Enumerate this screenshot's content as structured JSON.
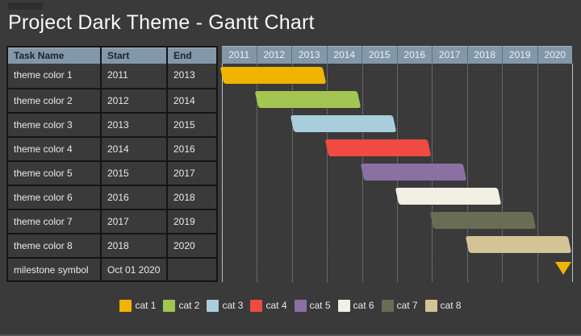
{
  "title": "Project Dark Theme - Gantt Chart",
  "colors": {
    "background": "#3A3A3A",
    "header_bg": "#8298A8",
    "header_text": "#1B2430",
    "year_text": "#ECF1F5",
    "row_text": "#E9E9E9",
    "table_border": "#151515",
    "milestone": "#F2B200"
  },
  "table": {
    "headers": [
      "Task Name",
      "Start",
      "End"
    ],
    "rows": [
      {
        "task": "theme color 1",
        "start": "2011",
        "end": "2013"
      },
      {
        "task": "theme color 2",
        "start": "2012",
        "end": "2014"
      },
      {
        "task": "theme color 3",
        "start": "2013",
        "end": "2015"
      },
      {
        "task": "theme color 4",
        "start": "2014",
        "end": "2016"
      },
      {
        "task": "theme color 5",
        "start": "2015",
        "end": "2017"
      },
      {
        "task": "theme color 6",
        "start": "2016",
        "end": "2018"
      },
      {
        "task": "theme color 7",
        "start": "2017",
        "end": "2019"
      },
      {
        "task": "theme color 8",
        "start": "2018",
        "end": "2020"
      },
      {
        "task": "milestone symbol",
        "start": "Oct 01 2020",
        "end": ""
      }
    ]
  },
  "chart_data": {
    "type": "bar",
    "subtype": "gantt",
    "title": "Project Dark Theme - Gantt Chart",
    "x_ticks": [
      "2011",
      "2012",
      "2013",
      "2014",
      "2015",
      "2016",
      "2017",
      "2018",
      "2019",
      "2020"
    ],
    "xlim": [
      2011,
      2021
    ],
    "grid": "vertical-dotted",
    "legend_position": "bottom",
    "series": [
      {
        "name": "theme color 1",
        "category": "cat 1",
        "start_year": 2011,
        "end_year": 2013,
        "color": "#F0B400"
      },
      {
        "name": "theme color 2",
        "category": "cat 2",
        "start_year": 2012,
        "end_year": 2014,
        "color": "#A3C652"
      },
      {
        "name": "theme color 3",
        "category": "cat 3",
        "start_year": 2013,
        "end_year": 2015,
        "color": "#A9CDDC"
      },
      {
        "name": "theme color 4",
        "category": "cat 4",
        "start_year": 2014,
        "end_year": 2016,
        "color": "#EF4B43"
      },
      {
        "name": "theme color 5",
        "category": "cat 5",
        "start_year": 2015,
        "end_year": 2017,
        "color": "#8A70A3"
      },
      {
        "name": "theme color 6",
        "category": "cat 6",
        "start_year": 2016,
        "end_year": 2018,
        "color": "#F2F0E4"
      },
      {
        "name": "theme color 7",
        "category": "cat 7",
        "start_year": 2017,
        "end_year": 2019,
        "color": "#696D54"
      },
      {
        "name": "theme color 8",
        "category": "cat 8",
        "start_year": 2018,
        "end_year": 2020,
        "color": "#D2C494"
      }
    ],
    "milestone": {
      "name": "milestone symbol",
      "date": "Oct 01 2020",
      "x": 2020.75,
      "symbol": "triangle-down",
      "color": "#F2B200"
    },
    "legend": [
      {
        "label": "cat 1",
        "color": "#F0B400"
      },
      {
        "label": "cat 2",
        "color": "#A3C652"
      },
      {
        "label": "cat 3",
        "color": "#A9CDDC"
      },
      {
        "label": "cat 4",
        "color": "#EF4B43"
      },
      {
        "label": "cat 5",
        "color": "#8A70A3"
      },
      {
        "label": "cat 6",
        "color": "#F2F0E4"
      },
      {
        "label": "cat 7",
        "color": "#696D54"
      },
      {
        "label": "cat 8",
        "color": "#D2C494"
      }
    ]
  }
}
